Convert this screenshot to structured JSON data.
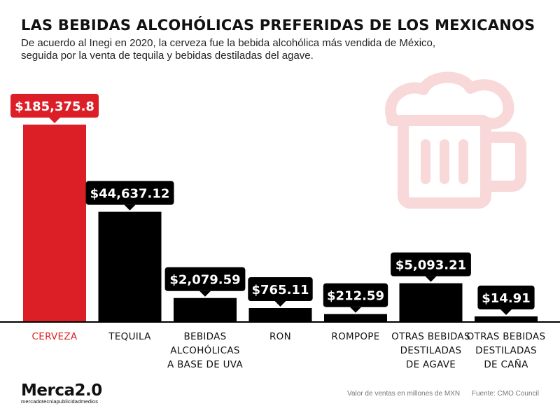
{
  "header": {
    "title": "LAS BEBIDAS ALCOHÓLICAS PREFERIDAS DE LOS MEXICANOS",
    "subtitle": "De acuerdo al Inegi en 2020, la cerveza fue la bebida alcohólica más vendida de México, seguida por la venta de tequila y bebidas destiladas del agave."
  },
  "chart_data": {
    "type": "bar",
    "title": "LAS BEBIDAS ALCOHÓLICAS PREFERIDAS DE LOS MEXICANOS",
    "categories": [
      "CERVEZA",
      "TEQUILA",
      "BEBIDAS ALCOHÓLICAS A BASE DE UVA",
      "RON",
      "ROMPOPE",
      "OTRAS BEBIDAS DESTILADAS DE AGAVE",
      "OTRAS BEBIDAS DESTILADAS DE CAÑA"
    ],
    "category_lines": [
      [
        "CERVEZA"
      ],
      [
        "TEQUILA"
      ],
      [
        "BEBIDAS",
        "ALCOHÓLICAS",
        "A BASE DE UVA"
      ],
      [
        "RON"
      ],
      [
        "ROMPOPE"
      ],
      [
        "OTRAS BEBIDAS",
        "DESTILADAS",
        "DE AGAVE"
      ],
      [
        "OTRAS BEBIDAS",
        "DESTILADAS",
        "DE CAÑA"
      ]
    ],
    "values": [
      185375.8,
      44637.12,
      2079.59,
      765.11,
      212.59,
      5093.21,
      14.91
    ],
    "value_labels": [
      "$185,375.8",
      "$44,637.12",
      "$2,079.59",
      "$765.11",
      "$212.59",
      "$5,093.21",
      "$14.91"
    ],
    "highlight_index": 0,
    "scale": "non-linear"
  },
  "colors": {
    "highlight": "#dc1f26",
    "bar": "#000000",
    "label_box": "#000000",
    "icon": "#f8d8d8"
  },
  "icon": "beer-mug-icon",
  "footer": {
    "note": "Valor de ventas en millones de MXN",
    "source": "Fuente: CMO Council"
  },
  "logo": {
    "brand": "Merca",
    "number": "2.0",
    "tagline": "mercadotecniapublicidadmedios"
  }
}
